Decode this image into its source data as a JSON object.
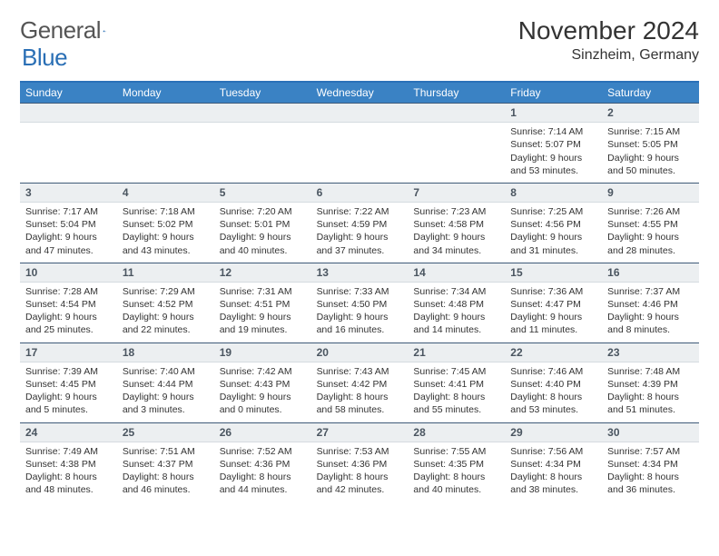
{
  "logo": {
    "word1": "General",
    "word2": "Blue"
  },
  "title": "November 2024",
  "location": "Sinzheim, Germany",
  "colors": {
    "header_bar": "#3a82c4",
    "header_top_border": "#2a71b8",
    "date_bar_bg": "#eceff1",
    "date_bar_border_top": "#3e5a78",
    "logo_blue": "#2a6fb5"
  },
  "weekdays": [
    "Sunday",
    "Monday",
    "Tuesday",
    "Wednesday",
    "Thursday",
    "Friday",
    "Saturday"
  ],
  "weeks": [
    [
      null,
      null,
      null,
      null,
      null,
      {
        "n": "1",
        "sr": "Sunrise: 7:14 AM",
        "ss": "Sunset: 5:07 PM",
        "d1": "Daylight: 9 hours",
        "d2": "and 53 minutes."
      },
      {
        "n": "2",
        "sr": "Sunrise: 7:15 AM",
        "ss": "Sunset: 5:05 PM",
        "d1": "Daylight: 9 hours",
        "d2": "and 50 minutes."
      }
    ],
    [
      {
        "n": "3",
        "sr": "Sunrise: 7:17 AM",
        "ss": "Sunset: 5:04 PM",
        "d1": "Daylight: 9 hours",
        "d2": "and 47 minutes."
      },
      {
        "n": "4",
        "sr": "Sunrise: 7:18 AM",
        "ss": "Sunset: 5:02 PM",
        "d1": "Daylight: 9 hours",
        "d2": "and 43 minutes."
      },
      {
        "n": "5",
        "sr": "Sunrise: 7:20 AM",
        "ss": "Sunset: 5:01 PM",
        "d1": "Daylight: 9 hours",
        "d2": "and 40 minutes."
      },
      {
        "n": "6",
        "sr": "Sunrise: 7:22 AM",
        "ss": "Sunset: 4:59 PM",
        "d1": "Daylight: 9 hours",
        "d2": "and 37 minutes."
      },
      {
        "n": "7",
        "sr": "Sunrise: 7:23 AM",
        "ss": "Sunset: 4:58 PM",
        "d1": "Daylight: 9 hours",
        "d2": "and 34 minutes."
      },
      {
        "n": "8",
        "sr": "Sunrise: 7:25 AM",
        "ss": "Sunset: 4:56 PM",
        "d1": "Daylight: 9 hours",
        "d2": "and 31 minutes."
      },
      {
        "n": "9",
        "sr": "Sunrise: 7:26 AM",
        "ss": "Sunset: 4:55 PM",
        "d1": "Daylight: 9 hours",
        "d2": "and 28 minutes."
      }
    ],
    [
      {
        "n": "10",
        "sr": "Sunrise: 7:28 AM",
        "ss": "Sunset: 4:54 PM",
        "d1": "Daylight: 9 hours",
        "d2": "and 25 minutes."
      },
      {
        "n": "11",
        "sr": "Sunrise: 7:29 AM",
        "ss": "Sunset: 4:52 PM",
        "d1": "Daylight: 9 hours",
        "d2": "and 22 minutes."
      },
      {
        "n": "12",
        "sr": "Sunrise: 7:31 AM",
        "ss": "Sunset: 4:51 PM",
        "d1": "Daylight: 9 hours",
        "d2": "and 19 minutes."
      },
      {
        "n": "13",
        "sr": "Sunrise: 7:33 AM",
        "ss": "Sunset: 4:50 PM",
        "d1": "Daylight: 9 hours",
        "d2": "and 16 minutes."
      },
      {
        "n": "14",
        "sr": "Sunrise: 7:34 AM",
        "ss": "Sunset: 4:48 PM",
        "d1": "Daylight: 9 hours",
        "d2": "and 14 minutes."
      },
      {
        "n": "15",
        "sr": "Sunrise: 7:36 AM",
        "ss": "Sunset: 4:47 PM",
        "d1": "Daylight: 9 hours",
        "d2": "and 11 minutes."
      },
      {
        "n": "16",
        "sr": "Sunrise: 7:37 AM",
        "ss": "Sunset: 4:46 PM",
        "d1": "Daylight: 9 hours",
        "d2": "and 8 minutes."
      }
    ],
    [
      {
        "n": "17",
        "sr": "Sunrise: 7:39 AM",
        "ss": "Sunset: 4:45 PM",
        "d1": "Daylight: 9 hours",
        "d2": "and 5 minutes."
      },
      {
        "n": "18",
        "sr": "Sunrise: 7:40 AM",
        "ss": "Sunset: 4:44 PM",
        "d1": "Daylight: 9 hours",
        "d2": "and 3 minutes."
      },
      {
        "n": "19",
        "sr": "Sunrise: 7:42 AM",
        "ss": "Sunset: 4:43 PM",
        "d1": "Daylight: 9 hours",
        "d2": "and 0 minutes."
      },
      {
        "n": "20",
        "sr": "Sunrise: 7:43 AM",
        "ss": "Sunset: 4:42 PM",
        "d1": "Daylight: 8 hours",
        "d2": "and 58 minutes."
      },
      {
        "n": "21",
        "sr": "Sunrise: 7:45 AM",
        "ss": "Sunset: 4:41 PM",
        "d1": "Daylight: 8 hours",
        "d2": "and 55 minutes."
      },
      {
        "n": "22",
        "sr": "Sunrise: 7:46 AM",
        "ss": "Sunset: 4:40 PM",
        "d1": "Daylight: 8 hours",
        "d2": "and 53 minutes."
      },
      {
        "n": "23",
        "sr": "Sunrise: 7:48 AM",
        "ss": "Sunset: 4:39 PM",
        "d1": "Daylight: 8 hours",
        "d2": "and 51 minutes."
      }
    ],
    [
      {
        "n": "24",
        "sr": "Sunrise: 7:49 AM",
        "ss": "Sunset: 4:38 PM",
        "d1": "Daylight: 8 hours",
        "d2": "and 48 minutes."
      },
      {
        "n": "25",
        "sr": "Sunrise: 7:51 AM",
        "ss": "Sunset: 4:37 PM",
        "d1": "Daylight: 8 hours",
        "d2": "and 46 minutes."
      },
      {
        "n": "26",
        "sr": "Sunrise: 7:52 AM",
        "ss": "Sunset: 4:36 PM",
        "d1": "Daylight: 8 hours",
        "d2": "and 44 minutes."
      },
      {
        "n": "27",
        "sr": "Sunrise: 7:53 AM",
        "ss": "Sunset: 4:36 PM",
        "d1": "Daylight: 8 hours",
        "d2": "and 42 minutes."
      },
      {
        "n": "28",
        "sr": "Sunrise: 7:55 AM",
        "ss": "Sunset: 4:35 PM",
        "d1": "Daylight: 8 hours",
        "d2": "and 40 minutes."
      },
      {
        "n": "29",
        "sr": "Sunrise: 7:56 AM",
        "ss": "Sunset: 4:34 PM",
        "d1": "Daylight: 8 hours",
        "d2": "and 38 minutes."
      },
      {
        "n": "30",
        "sr": "Sunrise: 7:57 AM",
        "ss": "Sunset: 4:34 PM",
        "d1": "Daylight: 8 hours",
        "d2": "and 36 minutes."
      }
    ]
  ]
}
